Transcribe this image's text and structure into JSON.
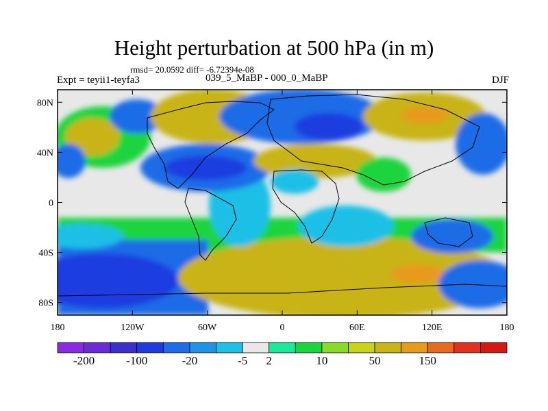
{
  "header": {
    "title": "Height perturbation at 500 hPa (in m)",
    "stats": "rmsd= 20.0592 diff= -6.72394e-08",
    "left_label": "Expt = teyii1-teyfa3",
    "center_label": "039_5_MaBP - 000_0_MaBP",
    "right_label": "DJF"
  },
  "map": {
    "type": "filled contour map",
    "projection": "cylindrical equidistant",
    "lon_range": [
      -180,
      180
    ],
    "lat_range": [
      -90,
      90
    ],
    "lat_ticks": [
      {
        "lat": 80,
        "label": "80N"
      },
      {
        "lat": 40,
        "label": "40N"
      },
      {
        "lat": 0,
        "label": "0"
      },
      {
        "lat": -40,
        "label": "40S"
      },
      {
        "lat": -80,
        "label": "80S"
      }
    ],
    "lon_ticks": [
      {
        "lon": -180,
        "label": "180"
      },
      {
        "lon": -120,
        "label": "120W"
      },
      {
        "lon": -60,
        "label": "60W"
      },
      {
        "lon": 0,
        "label": "0"
      },
      {
        "lon": 60,
        "label": "60E"
      },
      {
        "lon": 120,
        "label": "120E"
      },
      {
        "lon": 180,
        "label": "180"
      }
    ]
  },
  "colorbar": {
    "colors": [
      "#8a2be2",
      "#6a2bd6",
      "#3c2fcc",
      "#1e3ce0",
      "#1f6ce8",
      "#1e93e8",
      "#1fc0e6",
      "#e8e8e8",
      "#1ee89a",
      "#1ed43c",
      "#88dc28",
      "#c8d41a",
      "#c8b414",
      "#e89a1a",
      "#e86a1e",
      "#e0321e",
      "#d01a12"
    ],
    "labels": [
      "-200",
      "-100",
      "-20",
      "-5",
      "2",
      "10",
      "50",
      "150"
    ],
    "label_edges": [
      1,
      3,
      5,
      7,
      8,
      10,
      12,
      14
    ]
  },
  "colors": {
    "map_background": "#e8e8e8",
    "strong_negative": "#1e3ce0",
    "negative": "#1f6ce8",
    "weak_negative": "#1fc0e6",
    "weak_positive": "#1ed43c",
    "positive": "#c8b414",
    "strong_positive": "#e89a1a"
  }
}
